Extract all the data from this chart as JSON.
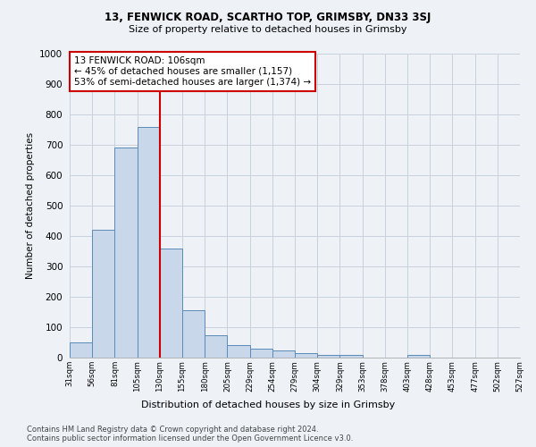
{
  "title_line1": "13, FENWICK ROAD, SCARTHO TOP, GRIMSBY, DN33 3SJ",
  "title_line2": "Size of property relative to detached houses in Grimsby",
  "xlabel": "Distribution of detached houses by size in Grimsby",
  "ylabel": "Number of detached properties",
  "bar_values": [
    50,
    420,
    690,
    760,
    360,
    155,
    75,
    40,
    30,
    25,
    15,
    10,
    10,
    0,
    0,
    10,
    0,
    0,
    0
  ],
  "bin_labels": [
    "31sqm",
    "56sqm",
    "81sqm",
    "105sqm",
    "130sqm",
    "155sqm",
    "180sqm",
    "205sqm",
    "229sqm",
    "254sqm",
    "279sqm",
    "304sqm",
    "329sqm",
    "353sqm",
    "378sqm",
    "403sqm",
    "428sqm",
    "453sqm",
    "477sqm",
    "502sqm",
    "527sqm"
  ],
  "bar_color": "#c8d8ea",
  "bar_edge_color": "#5a8ab8",
  "redline_bin": 3,
  "annotation_text": "13 FENWICK ROAD: 106sqm\n← 45% of detached houses are smaller (1,157)\n53% of semi-detached houses are larger (1,374) →",
  "annotation_box_color": "#ffffff",
  "annotation_box_edge": "#cc0000",
  "ylim": [
    0,
    1000
  ],
  "yticks": [
    0,
    100,
    200,
    300,
    400,
    500,
    600,
    700,
    800,
    900,
    1000
  ],
  "footer1": "Contains HM Land Registry data © Crown copyright and database right 2024.",
  "footer2": "Contains public sector information licensed under the Open Government Licence v3.0.",
  "bg_color": "#eef2f7",
  "plot_bg_color": "#eef2f7",
  "grid_color": "#c8d0dc"
}
